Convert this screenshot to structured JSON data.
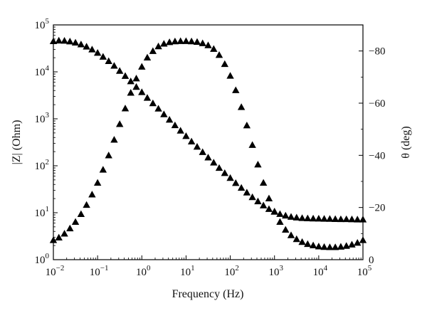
{
  "chart_data": {
    "type": "scatter",
    "xlabel": "Frequency (Hz)",
    "ylabel_left": "|Z| (Ohm)",
    "ylabel_right": "θ (deg)",
    "x_scale": "log",
    "y_left_scale": "log",
    "xlim": [
      0.01,
      100000
    ],
    "ylim_left": [
      1,
      100000
    ],
    "ylim_right": [
      0,
      -90
    ],
    "grid": false,
    "marker": "filled-triangle",
    "x_ticks": [
      {
        "base": "10",
        "exp": "−2",
        "value": 0.01
      },
      {
        "base": "10",
        "exp": "−1",
        "value": 0.1
      },
      {
        "base": "10",
        "exp": "0",
        "value": 1
      },
      {
        "base": "10",
        "exp": "1",
        "value": 10
      },
      {
        "base": "10",
        "exp": "2",
        "value": 100
      },
      {
        "base": "10",
        "exp": "3",
        "value": 1000
      },
      {
        "base": "10",
        "exp": "4",
        "value": 10000
      },
      {
        "base": "10",
        "exp": "5",
        "value": 100000
      }
    ],
    "y_left_ticks": [
      {
        "base": "10",
        "exp": "0",
        "value": 1
      },
      {
        "base": "10",
        "exp": "1",
        "value": 10
      },
      {
        "base": "10",
        "exp": "2",
        "value": 100
      },
      {
        "base": "10",
        "exp": "3",
        "value": 1000
      },
      {
        "base": "10",
        "exp": "4",
        "value": 10000
      },
      {
        "base": "10",
        "exp": "5",
        "value": 100000
      }
    ],
    "y_right_ticks": [
      {
        "label": "0",
        "value": 0
      },
      {
        "label": "−20",
        "value": -20
      },
      {
        "label": "−40",
        "value": -40
      },
      {
        "label": "−60",
        "value": -60
      },
      {
        "label": "−80",
        "value": -80
      }
    ],
    "series": [
      {
        "axis": "left",
        "x": [
          0.01,
          0.0133,
          0.0178,
          0.0237,
          0.0316,
          0.0422,
          0.0562,
          0.075,
          0.1,
          0.133,
          0.178,
          0.237,
          0.316,
          0.422,
          0.562,
          0.75,
          1,
          1.33,
          1.78,
          2.37,
          3.16,
          4.22,
          5.62,
          7.5,
          10,
          13.3,
          17.8,
          23.7,
          31.6,
          42.2,
          56.2,
          75,
          100,
          133,
          178,
          237,
          316,
          422,
          562,
          750,
          1000,
          1330,
          1780,
          2370,
          3160,
          4220,
          5620,
          7500,
          10000,
          13300,
          17800,
          23700,
          31600,
          42200,
          56200,
          75000,
          100000
        ],
        "y": [
          45000,
          46500,
          46000,
          44500,
          42000,
          38500,
          34500,
          30000,
          25500,
          21000,
          17000,
          13500,
          10500,
          8200,
          6300,
          4800,
          3700,
          2800,
          2150,
          1650,
          1250,
          960,
          730,
          560,
          430,
          330,
          255,
          196,
          150,
          117,
          90,
          70,
          55,
          43,
          34,
          27,
          21.5,
          17.5,
          14.3,
          12,
          10.5,
          9.4,
          8.7,
          8.2,
          7.9,
          7.7,
          7.6,
          7.55,
          7.5,
          7.45,
          7.4,
          7.35,
          7.3,
          7.3,
          7.25,
          7.2,
          7.2
        ]
      },
      {
        "axis": "right",
        "x": [
          0.01,
          0.0133,
          0.0178,
          0.0237,
          0.0316,
          0.0422,
          0.0562,
          0.075,
          0.1,
          0.133,
          0.178,
          0.237,
          0.316,
          0.422,
          0.562,
          0.75,
          1,
          1.33,
          1.78,
          2.37,
          3.16,
          4.22,
          5.62,
          7.5,
          10,
          13.3,
          17.8,
          23.7,
          31.6,
          42.2,
          56.2,
          75,
          100,
          133,
          178,
          237,
          316,
          422,
          562,
          750,
          1000,
          1330,
          1780,
          2370,
          3160,
          4220,
          5620,
          7500,
          10000,
          13300,
          17800,
          23700,
          31600,
          42200,
          56200,
          75000,
          100000
        ],
        "y": [
          -7.5,
          -8.5,
          -10,
          -12,
          -14.5,
          -17.5,
          -21,
          -25,
          -29.5,
          -34.5,
          -40,
          -46,
          -52,
          -58,
          -64,
          -69.5,
          -74,
          -77.5,
          -80,
          -81.8,
          -82.8,
          -83.4,
          -83.7,
          -83.8,
          -83.8,
          -83.7,
          -83.5,
          -83,
          -82.2,
          -80.8,
          -78.5,
          -75,
          -70.5,
          -65,
          -58.5,
          -51.5,
          -44,
          -36.5,
          -29.5,
          -23.5,
          -18.5,
          -14.5,
          -11.5,
          -9.4,
          -7.9,
          -6.8,
          -6,
          -5.5,
          -5.1,
          -4.9,
          -4.8,
          -4.8,
          -5,
          -5.3,
          -5.8,
          -6.5,
          -7.5
        ]
      }
    ]
  }
}
